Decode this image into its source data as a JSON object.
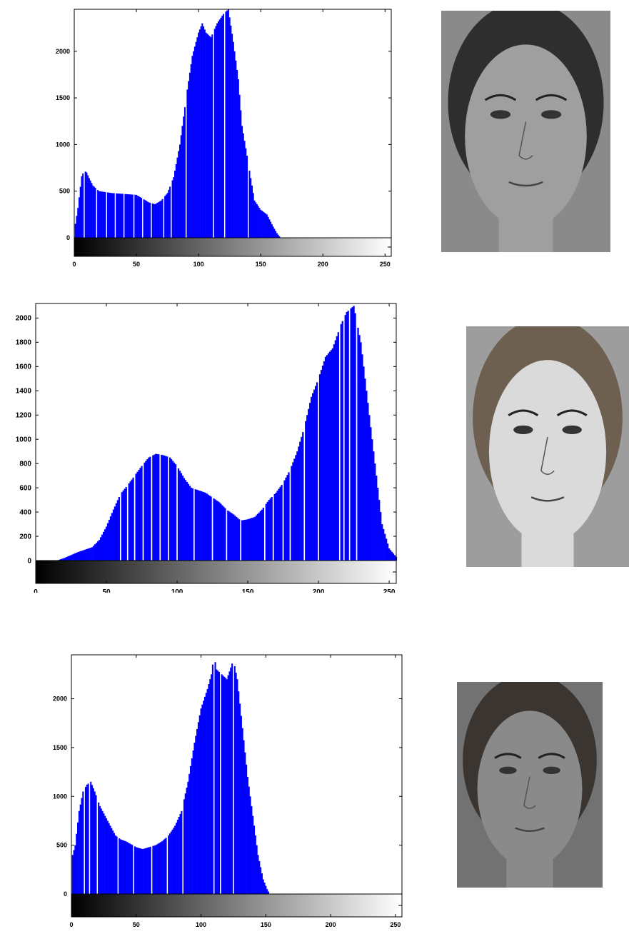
{
  "chart_data": [
    {
      "type": "bar",
      "title": "",
      "xlabel": "",
      "ylabel": "",
      "xlim": [
        0,
        255
      ],
      "ylim": [
        0,
        2450
      ],
      "xticks": [
        0,
        50,
        100,
        150,
        200,
        250
      ],
      "yticks": [
        0,
        500,
        1000,
        1500,
        2000
      ],
      "xtick_labels": [
        "0",
        "50",
        "100",
        "150",
        "200",
        "250"
      ],
      "ytick_labels": [
        "0",
        "500",
        "1000",
        "1500",
        "2000"
      ],
      "grid": false,
      "legend": "none",
      "color": "#0000ff",
      "colorbar": "grayscale",
      "profile": [
        [
          0,
          0
        ],
        [
          1,
          150
        ],
        [
          3,
          320
        ],
        [
          6,
          660
        ],
        [
          8,
          720
        ],
        [
          10,
          700
        ],
        [
          12,
          640
        ],
        [
          15,
          560
        ],
        [
          20,
          500
        ],
        [
          30,
          480
        ],
        [
          40,
          470
        ],
        [
          50,
          460
        ],
        [
          55,
          420
        ],
        [
          60,
          380
        ],
        [
          65,
          360
        ],
        [
          70,
          400
        ],
        [
          75,
          480
        ],
        [
          80,
          650
        ],
        [
          85,
          1000
        ],
        [
          90,
          1500
        ],
        [
          95,
          1950
        ],
        [
          100,
          2200
        ],
        [
          103,
          2300
        ],
        [
          106,
          2200
        ],
        [
          110,
          2150
        ],
        [
          115,
          2300
        ],
        [
          120,
          2400
        ],
        [
          124,
          2450
        ],
        [
          128,
          2100
        ],
        [
          132,
          1700
        ],
        [
          135,
          1200
        ],
        [
          140,
          800
        ],
        [
          145,
          400
        ],
        [
          150,
          300
        ],
        [
          155,
          250
        ],
        [
          160,
          120
        ],
        [
          163,
          50
        ],
        [
          166,
          0
        ],
        [
          255,
          0
        ]
      ],
      "gaps": [
        8,
        18,
        26,
        33,
        40,
        48,
        55,
        62,
        72,
        78,
        90,
        112,
        121,
        140
      ]
    },
    {
      "type": "bar",
      "title": "",
      "xlabel": "",
      "ylabel": "",
      "xlim": [
        0,
        255
      ],
      "ylim": [
        0,
        2120
      ],
      "xticks": [
        0,
        50,
        100,
        150,
        200,
        250
      ],
      "yticks": [
        0,
        200,
        400,
        600,
        800,
        1000,
        1200,
        1400,
        1600,
        1800,
        2000
      ],
      "xtick_labels": [
        "0",
        "50",
        "100",
        "150",
        "200",
        "250"
      ],
      "ytick_labels": [
        "0",
        "200",
        "400",
        "600",
        "800",
        "1000",
        "1200",
        "1400",
        "1600",
        "1800",
        "2000"
      ],
      "grid": false,
      "legend": "none",
      "color": "#0000ff",
      "colorbar": "grayscale",
      "profile": [
        [
          0,
          0
        ],
        [
          15,
          0
        ],
        [
          20,
          20
        ],
        [
          30,
          70
        ],
        [
          40,
          110
        ],
        [
          45,
          170
        ],
        [
          50,
          280
        ],
        [
          55,
          420
        ],
        [
          60,
          550
        ],
        [
          65,
          620
        ],
        [
          70,
          700
        ],
        [
          75,
          780
        ],
        [
          80,
          850
        ],
        [
          85,
          880
        ],
        [
          90,
          870
        ],
        [
          95,
          850
        ],
        [
          100,
          780
        ],
        [
          105,
          680
        ],
        [
          110,
          600
        ],
        [
          115,
          580
        ],
        [
          120,
          560
        ],
        [
          125,
          520
        ],
        [
          130,
          480
        ],
        [
          135,
          420
        ],
        [
          140,
          380
        ],
        [
          145,
          330
        ],
        [
          150,
          340
        ],
        [
          155,
          360
        ],
        [
          160,
          420
        ],
        [
          165,
          500
        ],
        [
          170,
          560
        ],
        [
          175,
          640
        ],
        [
          180,
          750
        ],
        [
          185,
          900
        ],
        [
          190,
          1100
        ],
        [
          195,
          1350
        ],
        [
          200,
          1500
        ],
        [
          205,
          1680
        ],
        [
          210,
          1750
        ],
        [
          213,
          1850
        ],
        [
          216,
          1950
        ],
        [
          220,
          2050
        ],
        [
          225,
          2100
        ],
        [
          230,
          1800
        ],
        [
          235,
          1300
        ],
        [
          240,
          800
        ],
        [
          245,
          300
        ],
        [
          250,
          100
        ],
        [
          255,
          30
        ]
      ],
      "gaps": [
        60,
        65,
        70,
        76,
        82,
        88,
        94,
        100,
        112,
        125,
        135,
        145,
        162,
        168,
        175,
        180,
        190,
        200,
        215,
        218,
        222,
        227
      ]
    },
    {
      "type": "bar",
      "title": "",
      "xlabel": "",
      "ylabel": "",
      "xlim": [
        0,
        255
      ],
      "ylim": [
        0,
        2450
      ],
      "xticks": [
        0,
        50,
        100,
        150,
        200,
        250
      ],
      "yticks": [
        0,
        500,
        1000,
        1500,
        2000
      ],
      "xtick_labels": [
        "0",
        "50",
        "100",
        "150",
        "200",
        "250"
      ],
      "ytick_labels": [
        "0",
        "500",
        "1000",
        "1500",
        "2000"
      ],
      "grid": false,
      "legend": "none",
      "color": "#0000ff",
      "colorbar": "grayscale",
      "profile": [
        [
          0,
          0
        ],
        [
          1,
          400
        ],
        [
          3,
          500
        ],
        [
          6,
          850
        ],
        [
          9,
          1050
        ],
        [
          12,
          1120
        ],
        [
          15,
          1150
        ],
        [
          18,
          1050
        ],
        [
          22,
          900
        ],
        [
          26,
          800
        ],
        [
          30,
          700
        ],
        [
          34,
          600
        ],
        [
          38,
          560
        ],
        [
          42,
          540
        ],
        [
          46,
          510
        ],
        [
          50,
          480
        ],
        [
          55,
          460
        ],
        [
          60,
          480
        ],
        [
          65,
          500
        ],
        [
          70,
          540
        ],
        [
          75,
          600
        ],
        [
          80,
          700
        ],
        [
          85,
          850
        ],
        [
          90,
          1150
        ],
        [
          95,
          1550
        ],
        [
          100,
          1900
        ],
        [
          105,
          2100
        ],
        [
          108,
          2250
        ],
        [
          110,
          2450
        ],
        [
          112,
          2300
        ],
        [
          116,
          2250
        ],
        [
          120,
          2200
        ],
        [
          125,
          2400
        ],
        [
          128,
          2200
        ],
        [
          132,
          1700
        ],
        [
          136,
          1200
        ],
        [
          140,
          800
        ],
        [
          144,
          400
        ],
        [
          148,
          150
        ],
        [
          151,
          50
        ],
        [
          153,
          0
        ],
        [
          255,
          0
        ]
      ],
      "gaps": [
        10,
        14,
        20,
        36,
        48,
        62,
        74,
        86,
        110,
        115,
        125
      ]
    }
  ],
  "face_image_colors": {
    "face1": {
      "background": "#8a8a8a",
      "skin": "#9f9f9f",
      "hair": "#2e2e2e"
    },
    "face2": {
      "background": "#9d9d9d",
      "skin": "#dadada",
      "hair": "#6e6050"
    },
    "face3": {
      "background": "#727272",
      "skin": "#8a8a8a",
      "hair": "#3a3530"
    }
  }
}
